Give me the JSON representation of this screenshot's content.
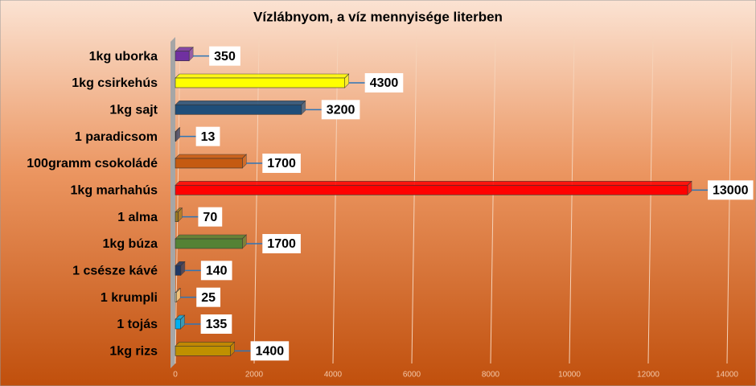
{
  "chart_data": {
    "type": "bar",
    "orientation": "horizontal",
    "title": "Vízlábnyom, a víz mennyisége literben",
    "categories": [
      "1kg uborka",
      "1kg csirkehús",
      "1kg sajt",
      "1 paradicsom",
      "100gramm csokoládé",
      "1kg marhahús",
      "1 alma",
      "1kg búza",
      "1 csésze kávé",
      "1 krumpli",
      "1 tojás",
      "1kg rizs"
    ],
    "values": [
      350,
      4300,
      3200,
      13,
      1700,
      13000,
      70,
      1700,
      140,
      25,
      135,
      1400
    ],
    "colors": [
      "#7030a0",
      "#ffff00",
      "#1f4e79",
      "#1f3864",
      "#c55a11",
      "#ff0000",
      "#9c7a1e",
      "#548235",
      "#203864",
      "#ffe699",
      "#00b0f0",
      "#bf9000"
    ],
    "xlim": [
      0,
      14000
    ],
    "xticks": [
      0,
      2000,
      4000,
      6000,
      8000,
      10000,
      12000,
      14000
    ],
    "grid": true
  }
}
